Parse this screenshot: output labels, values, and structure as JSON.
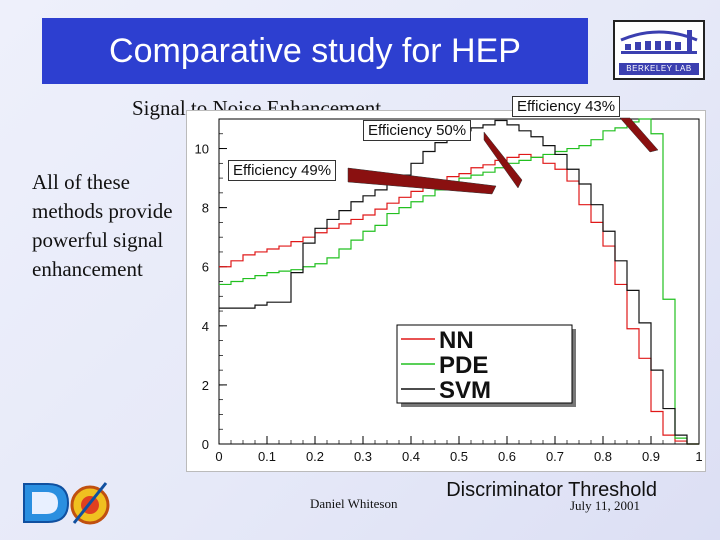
{
  "slide": {
    "title": "Comparative study for HEP",
    "subtitle": "Signal to Noise Enhancement",
    "bullet": "All of these methods provide powerful signal enhancement",
    "logo_label": "BERKELEY LAB",
    "footer_name": "Daniel Whiteson",
    "footer_date": "July 11, 2001"
  },
  "callouts": {
    "nn": "Efficiency 50%",
    "svm": "Efficiency 49%",
    "pde": "Efficiency 43%"
  },
  "colors": {
    "nn": "#e01818",
    "pde": "#22c020",
    "svm": "#111111",
    "title_bg": "#2d3fd0",
    "arrow": "#8a1010"
  },
  "chart_data": {
    "type": "line",
    "step": true,
    "title": "",
    "xlabel": "Discriminator Threshold",
    "ylabel": "",
    "xlim": [
      0,
      1
    ],
    "ylim": [
      0,
      11
    ],
    "xticks": [
      "0",
      "0.1",
      "0.2",
      "0.3",
      "0.4",
      "0.5",
      "0.6",
      "0.7",
      "0.8",
      "0.9",
      "1"
    ],
    "yticks": [
      "0",
      "2",
      "4",
      "6",
      "8",
      "10"
    ],
    "bin_width": 0.025,
    "legend_position": "center-right",
    "series": [
      {
        "name": "NN",
        "key": "nn",
        "values": [
          6.0,
          6.2,
          6.4,
          6.5,
          6.6,
          6.7,
          6.85,
          7.0,
          7.15,
          7.3,
          7.45,
          7.6,
          7.75,
          7.95,
          8.15,
          8.35,
          8.55,
          8.7,
          8.9,
          9.05,
          9.15,
          9.35,
          9.45,
          9.6,
          9.7,
          9.8,
          9.7,
          9.5,
          9.3,
          8.9,
          8.1,
          7.5,
          6.7,
          5.4,
          3.9,
          2.9,
          1.1,
          0.3,
          0.1,
          0.0
        ]
      },
      {
        "name": "PDE",
        "key": "pde",
        "values": [
          5.4,
          5.5,
          5.6,
          5.7,
          5.8,
          5.85,
          5.9,
          6.0,
          6.1,
          6.3,
          6.6,
          6.9,
          7.2,
          7.4,
          7.8,
          8.0,
          8.2,
          8.4,
          8.6,
          8.8,
          9.0,
          9.1,
          9.2,
          9.35,
          9.5,
          9.6,
          9.7,
          9.8,
          9.9,
          10.0,
          10.1,
          10.3,
          10.6,
          10.7,
          10.9,
          11.0,
          10.5,
          4.9,
          0.2,
          0.0
        ]
      },
      {
        "name": "SVM",
        "key": "svm",
        "values": [
          4.6,
          4.6,
          4.6,
          4.7,
          4.8,
          4.8,
          5.8,
          6.8,
          7.3,
          7.6,
          7.9,
          8.2,
          8.4,
          8.6,
          8.9,
          9.1,
          9.5,
          9.9,
          10.2,
          10.4,
          10.6,
          10.7,
          10.8,
          10.95,
          10.8,
          10.6,
          10.4,
          10.1,
          9.8,
          9.3,
          8.8,
          8.1,
          7.2,
          6.2,
          5.2,
          4.1,
          2.5,
          1.2,
          0.3,
          0.0
        ]
      }
    ]
  }
}
